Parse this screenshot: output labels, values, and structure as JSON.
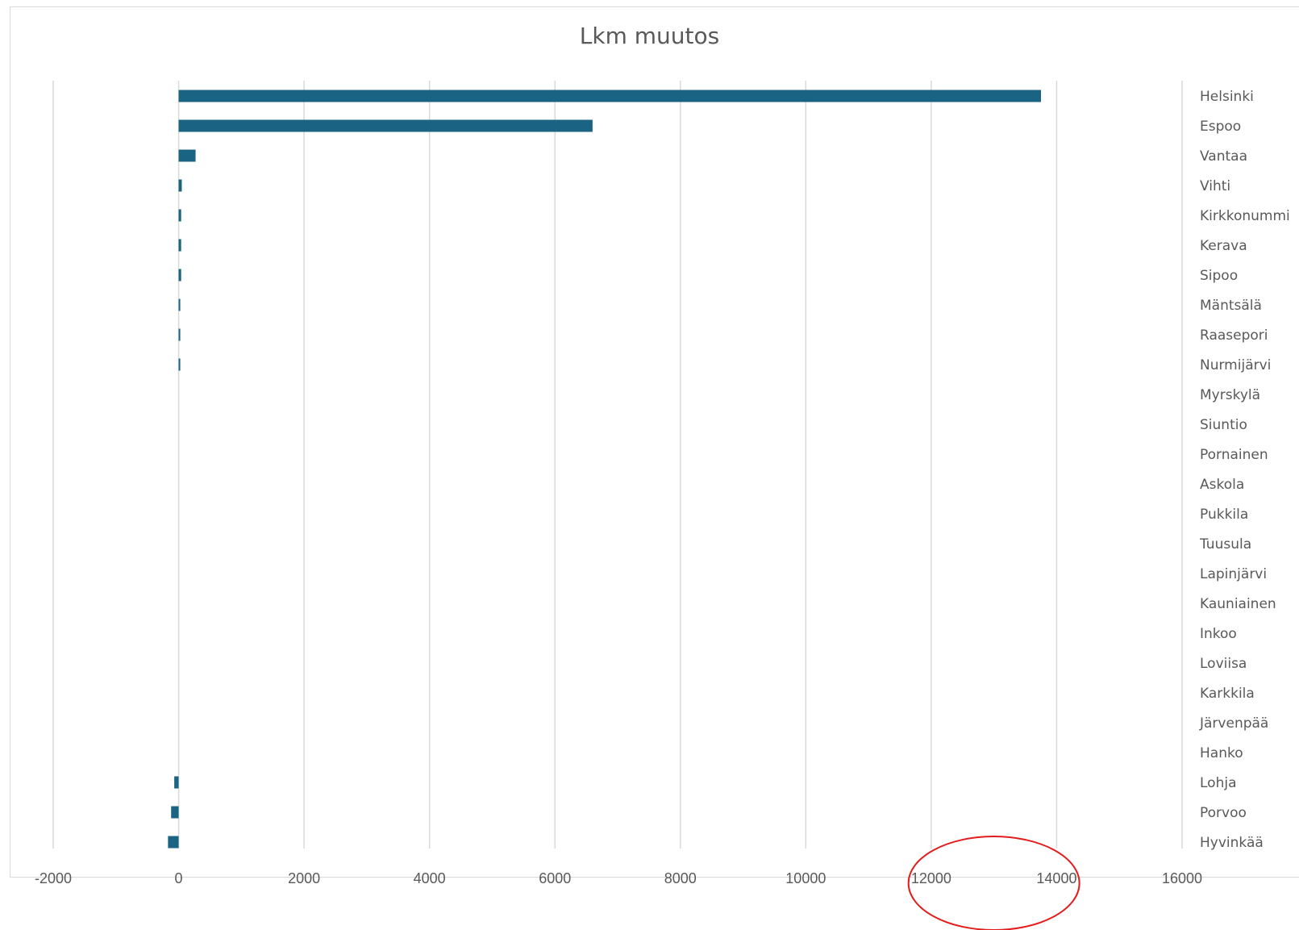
{
  "chart_data": {
    "type": "bar",
    "orientation": "horizontal",
    "title": "Lkm muutos",
    "xlabel": "",
    "ylabel": "",
    "xlim": [
      -2000,
      16000
    ],
    "xticks": [
      -2000,
      0,
      2000,
      4000,
      6000,
      8000,
      10000,
      12000,
      14000,
      16000
    ],
    "grid": true,
    "legend": "none",
    "categories": [
      "Helsinki",
      "Espoo",
      "Vantaa",
      "Vihti",
      "Kirkkonummi",
      "Kerava",
      "Sipoo",
      "Mäntsälä",
      "Raasepori",
      "Nurmijärvi",
      "Myrskylä",
      "Siuntio",
      "Pornainen",
      "Askola",
      "Pukkila",
      "Tuusula",
      "Lapinjärvi",
      "Kauniainen",
      "Inkoo",
      "Loviisa",
      "Karkkila",
      "Järvenpää",
      "Hanko",
      "Lohja",
      "Porvoo",
      "Hyvinkää"
    ],
    "values": [
      13750,
      6600,
      270,
      50,
      40,
      40,
      40,
      25,
      20,
      15,
      0,
      0,
      0,
      0,
      0,
      0,
      0,
      0,
      0,
      0,
      0,
      0,
      0,
      -70,
      -120,
      -170
    ],
    "bar_color": "#1a6383",
    "annotation": {
      "shape": "ellipse",
      "color": "#e31c1c",
      "around_ticks": [
        12000,
        14000
      ]
    }
  }
}
